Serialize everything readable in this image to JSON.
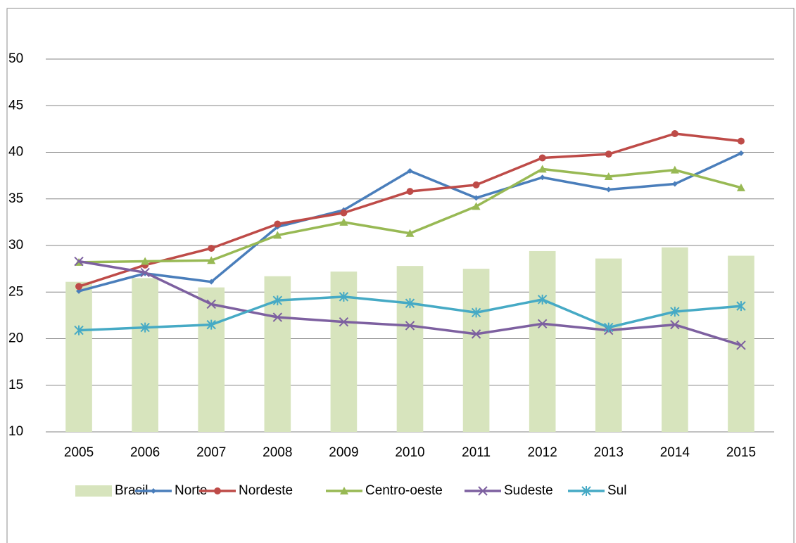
{
  "chart_data": {
    "type": "line",
    "categories": [
      "2005",
      "2006",
      "2007",
      "2008",
      "2009",
      "2010",
      "2011",
      "2012",
      "2013",
      "2014",
      "2015"
    ],
    "series": [
      {
        "name": "Brasil",
        "type": "bar",
        "color": "#d7e4bd",
        "values": [
          26.1,
          26.5,
          25.5,
          26.7,
          27.2,
          27.8,
          27.5,
          29.4,
          28.6,
          29.8,
          28.9
        ]
      },
      {
        "name": "Norte",
        "type": "line",
        "marker": "diamond",
        "color": "#4a7ebb",
        "values": [
          25.1,
          27.0,
          26.1,
          32.0,
          33.8,
          38.0,
          35.1,
          37.3,
          36.0,
          36.6,
          39.9
        ]
      },
      {
        "name": "Nordeste",
        "type": "line",
        "marker": "circle",
        "color": "#be4b48",
        "values": [
          25.6,
          27.9,
          29.7,
          32.3,
          33.5,
          35.8,
          36.5,
          39.4,
          39.8,
          42.0,
          41.2
        ]
      },
      {
        "name": "Centro-oeste",
        "type": "line",
        "marker": "triangle",
        "color": "#98b954",
        "values": [
          28.2,
          28.3,
          28.4,
          31.1,
          32.5,
          31.3,
          34.2,
          38.2,
          37.4,
          38.1,
          36.2
        ]
      },
      {
        "name": "Sudeste",
        "type": "line",
        "marker": "x",
        "color": "#7d60a0",
        "values": [
          28.3,
          27.1,
          23.7,
          22.3,
          21.8,
          21.4,
          20.5,
          21.6,
          20.9,
          21.5,
          19.3
        ]
      },
      {
        "name": "Sul",
        "type": "line",
        "marker": "star",
        "color": "#46aac5",
        "values": [
          20.9,
          21.2,
          21.5,
          24.1,
          24.5,
          23.8,
          22.8,
          24.2,
          21.2,
          22.9,
          23.5
        ]
      }
    ],
    "ylim": [
      10,
      50
    ],
    "yticks": [
      10,
      15,
      20,
      25,
      30,
      35,
      40,
      45,
      50
    ],
    "grid": true,
    "legend": "bottom"
  }
}
